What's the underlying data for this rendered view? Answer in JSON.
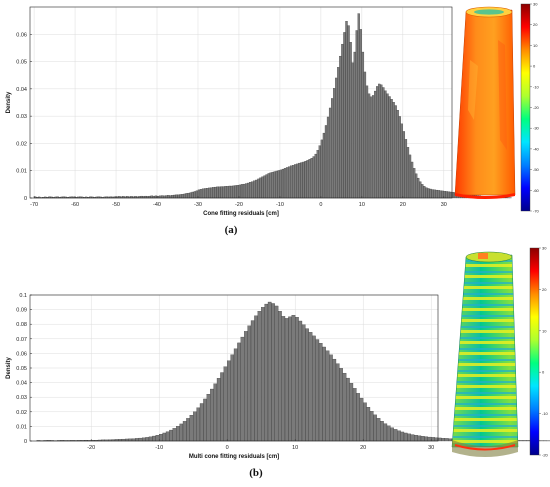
{
  "captions": {
    "a": "(a)",
    "b": "(b)"
  },
  "chart_data": [
    {
      "id": "a",
      "type": "bar",
      "xlabel": "Cone fitting residuals [cm]",
      "ylabel": "Density",
      "xlim": [
        -71,
        32
      ],
      "ylim": [
        0,
        0.07
      ],
      "xticks": [
        -70,
        -60,
        -50,
        -40,
        -30,
        -20,
        -10,
        0,
        10,
        20,
        30
      ],
      "yticks": [
        0,
        0.01,
        0.02,
        0.03,
        0.04,
        0.05,
        0.06
      ],
      "grid": true,
      "bin_width": 0.5,
      "bin_start": -70,
      "values": [
        0.0005,
        0.0003,
        0.0004,
        0.0002,
        0.0003,
        0.0004,
        0.0003,
        0.0005,
        0.0004,
        0.0003,
        0.0004,
        0.0005,
        0.0003,
        0.0004,
        0.0005,
        0.0004,
        0.0003,
        0.0004,
        0.0005,
        0.0004,
        0.0003,
        0.0004,
        0.0005,
        0.0004,
        0.0003,
        0.0004,
        0.0003,
        0.0005,
        0.0004,
        0.0003,
        0.0004,
        0.0005,
        0.0004,
        0.0003,
        0.0004,
        0.0005,
        0.0004,
        0.0005,
        0.0004,
        0.0005,
        0.0005,
        0.0006,
        0.0005,
        0.0006,
        0.0005,
        0.0006,
        0.0005,
        0.0006,
        0.0005,
        0.0006,
        0.0005,
        0.0006,
        0.0007,
        0.0006,
        0.0007,
        0.0006,
        0.0007,
        0.0008,
        0.0007,
        0.0008,
        0.0007,
        0.0008,
        0.0009,
        0.0008,
        0.0009,
        0.001,
        0.0009,
        0.001,
        0.0011,
        0.0012,
        0.0012,
        0.0013,
        0.0014,
        0.0015,
        0.0017,
        0.0018,
        0.002,
        0.0022,
        0.0024,
        0.0027,
        0.003,
        0.0032,
        0.0034,
        0.0035,
        0.0036,
        0.0037,
        0.0038,
        0.0039,
        0.004,
        0.0041,
        0.0041,
        0.0042,
        0.0042,
        0.0043,
        0.0043,
        0.0044,
        0.0044,
        0.0045,
        0.0046,
        0.0047,
        0.0048,
        0.005,
        0.0051,
        0.0053,
        0.0055,
        0.0058,
        0.006,
        0.0063,
        0.0066,
        0.007,
        0.0074,
        0.0078,
        0.0082,
        0.0086,
        0.009,
        0.0093,
        0.0095,
        0.0097,
        0.0099,
        0.0101,
        0.0103,
        0.0106,
        0.0109,
        0.0112,
        0.0115,
        0.0118,
        0.012,
        0.0123,
        0.0125,
        0.0128,
        0.013,
        0.0132,
        0.0135,
        0.0138,
        0.0142,
        0.0146,
        0.0152,
        0.0161,
        0.0175,
        0.0192,
        0.0213,
        0.0238,
        0.0266,
        0.0297,
        0.033,
        0.0365,
        0.0402,
        0.044,
        0.0479,
        0.052,
        0.0564,
        0.0607,
        0.0648,
        0.0632,
        0.0571,
        0.0496,
        0.0535,
        0.0614,
        0.0676,
        0.0618,
        0.0535,
        0.0462,
        0.0411,
        0.0382,
        0.0371,
        0.0376,
        0.0392,
        0.0409,
        0.0418,
        0.0415,
        0.0405,
        0.0393,
        0.0382,
        0.0372,
        0.0362,
        0.0351,
        0.0339,
        0.0322,
        0.0299,
        0.0272,
        0.0244,
        0.0215,
        0.0186,
        0.0158,
        0.0132,
        0.0109,
        0.0089,
        0.0073,
        0.006,
        0.005,
        0.0043,
        0.0038,
        0.0035,
        0.0033,
        0.0031,
        0.003,
        0.0029,
        0.0028,
        0.0027,
        0.0026,
        0.0025,
        0.0024,
        0.0023,
        0.0022,
        0.0021,
        0.002,
        0.0019,
        0.0018,
        0.0017,
        0.0016,
        0.0015,
        0.0014,
        0.0013,
        0.0012,
        0.0011,
        0.001,
        0.0009,
        0.0008,
        0.0007,
        0.0006,
        0.0005,
        0.0004,
        0.0004,
        0.0003,
        0.0003,
        0.0003,
        0.0002,
        0.0002,
        0.0002,
        0.0002,
        0.0001,
        0.0001,
        0.0001
      ]
    },
    {
      "id": "b",
      "type": "bar",
      "xlabel": "Multi cone fitting residuals [cm]",
      "ylabel": "Density",
      "xlim": [
        -29,
        31
      ],
      "ylim": [
        0,
        0.1
      ],
      "xticks": [
        -20,
        -10,
        0,
        10,
        20,
        30
      ],
      "yticks": [
        0,
        0.01,
        0.02,
        0.03,
        0.04,
        0.05,
        0.06,
        0.07,
        0.08,
        0.09,
        0.1
      ],
      "grid": true,
      "bin_width": 0.5,
      "bin_start": -28,
      "values": [
        0.0004,
        0.0003,
        0.0004,
        0.0005,
        0.0004,
        0.0003,
        0.0004,
        0.0005,
        0.0004,
        0.0004,
        0.0005,
        0.0004,
        0.0005,
        0.0005,
        0.0006,
        0.0005,
        0.0006,
        0.0006,
        0.0007,
        0.0008,
        0.0008,
        0.0009,
        0.001,
        0.0011,
        0.0012,
        0.0013,
        0.0014,
        0.0015,
        0.0016,
        0.0018,
        0.002,
        0.0022,
        0.0025,
        0.0029,
        0.0034,
        0.004,
        0.0047,
        0.0055,
        0.0064,
        0.0075,
        0.0087,
        0.0101,
        0.0117,
        0.0135,
        0.0155,
        0.0177,
        0.0201,
        0.0228,
        0.0257,
        0.0288,
        0.0321,
        0.0356,
        0.0392,
        0.043,
        0.0469,
        0.0509,
        0.055,
        0.0591,
        0.0632,
        0.0672,
        0.0712,
        0.0751,
        0.0789,
        0.0825,
        0.0858,
        0.0889,
        0.0916,
        0.0938,
        0.0952,
        0.0942,
        0.0925,
        0.0889,
        0.0854,
        0.084,
        0.0851,
        0.0862,
        0.0848,
        0.0822,
        0.0796,
        0.077,
        0.0745,
        0.072,
        0.0695,
        0.067,
        0.0644,
        0.0618,
        0.059,
        0.0561,
        0.053,
        0.0498,
        0.0465,
        0.0431,
        0.0396,
        0.0361,
        0.0327,
        0.0294,
        0.0262,
        0.0232,
        0.0204,
        0.0179,
        0.0156,
        0.0136,
        0.0119,
        0.0104,
        0.0091,
        0.008,
        0.007,
        0.0062,
        0.0055,
        0.0049,
        0.0044,
        0.004,
        0.0036,
        0.0033,
        0.003,
        0.0027,
        0.0025,
        0.0023,
        0.0021,
        0.0019,
        0.0018,
        0.0016,
        0.0015,
        0.0014,
        0.0013,
        0.0012,
        0.0011,
        0.0011,
        0.001,
        0.0009,
        0.0009,
        0.0008,
        0.0008,
        0.0007,
        0.0007,
        0.0006,
        0.0006,
        0.0006,
        0.0005,
        0.0005,
        0.0005,
        0.0004,
        0.0004,
        0.0004,
        0.0004,
        0.0003,
        0.0003,
        0.0003,
        0.0003,
        0.0003,
        0.0002,
        0.0002,
        0.0002,
        0.0002,
        0.0002,
        0.0002,
        0.0002,
        0.0002,
        0.0001,
        0.0001,
        0.0001,
        0.0001,
        0.0001,
        0.0001,
        0.0001,
        0.0001,
        0.0001,
        0.0001,
        0.0001,
        0.0001,
        0.0001,
        0.0001,
        0.0001,
        0.0001,
        0.0001,
        0.0001,
        0.0001,
        0.0001,
        0.0001,
        0.0001,
        0.0001,
        0.0001,
        0.0001,
        0.0001,
        0.0001,
        0.0001,
        0.0001
      ]
    }
  ],
  "colorbars": [
    {
      "id": "a",
      "ticks": [
        "30",
        "20",
        "10",
        "0",
        "-10",
        "-20",
        "-30",
        "-40",
        "-50",
        "-60",
        "-70"
      ],
      "stops": [
        "#8b0000",
        "#ff0000",
        "#ff8c00",
        "#ffff00",
        "#adff2f",
        "#00ff7f",
        "#00e5ff",
        "#0080ff",
        "#0000ff",
        "#00008b"
      ]
    },
    {
      "id": "b",
      "ticks": [
        "30",
        "20",
        "10",
        "0",
        "-10",
        "-20"
      ],
      "stops": [
        "#8b0000",
        "#ff0000",
        "#ff8c00",
        "#ffff00",
        "#adff2f",
        "#00ff7f",
        "#00e5ff",
        "#0080ff",
        "#0000ff",
        "#00008b"
      ]
    }
  ],
  "colors": {
    "bar_fill": "#7a7a7a",
    "bar_stroke": "#222222",
    "grid": "#dcdcdc"
  },
  "insets": [
    {
      "id": "a",
      "icon": "red-cone-residual-model"
    },
    {
      "id": "b",
      "icon": "multi-cone-residual-model"
    }
  ]
}
